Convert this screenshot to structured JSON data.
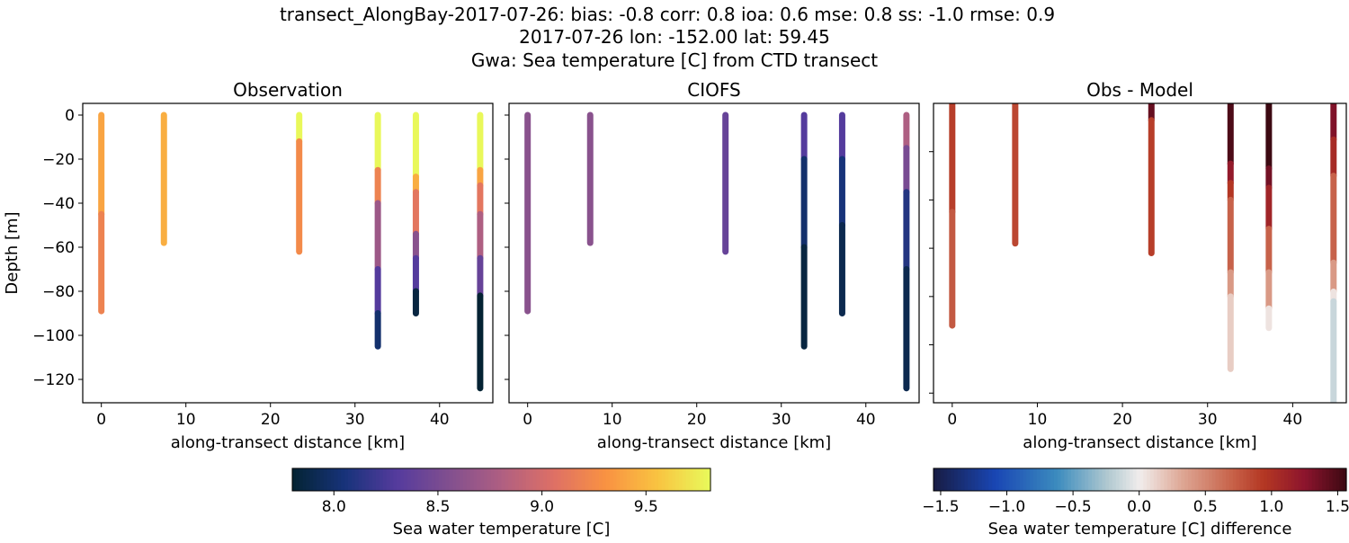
{
  "title_lines": [
    "transect_AlongBay-2017-07-26: bias: -0.8  corr: 0.8  ioa: 0.6  mse: 0.8  ss: -1.0  rmse: 0.9",
    "2017-07-26 lon: -152.00 lat: 59.45",
    "Gwa: Sea temperature [C] from CTD transect"
  ],
  "chart_data": [
    {
      "type": "scatter",
      "title": "Observation",
      "xlabel": "along-transect distance [km]",
      "ylabel": "Depth [m]",
      "xlim": [
        -2.2,
        46.3
      ],
      "ylim": [
        -130.6,
        5.3
      ],
      "xticks": [
        0,
        10,
        20,
        30,
        40
      ],
      "yticks": [
        0,
        -20,
        -40,
        -60,
        -80,
        -100,
        -120
      ],
      "colormap": "thermal",
      "profiles": [
        {
          "x": 0,
          "segments": [
            [
              0,
              -45,
              9.4
            ],
            [
              -45,
              -89,
              9.2
            ]
          ]
        },
        {
          "x": 7.4,
          "segments": [
            [
              0,
              -58,
              9.45
            ]
          ]
        },
        {
          "x": 23.4,
          "segments": [
            [
              0,
              -12,
              9.8
            ],
            [
              -12,
              -62,
              9.25
            ]
          ]
        },
        {
          "x": 32.7,
          "segments": [
            [
              0,
              -25,
              9.8
            ],
            [
              -25,
              -40,
              9.2
            ],
            [
              -40,
              -70,
              8.7
            ],
            [
              -70,
              -90,
              8.3
            ],
            [
              -90,
              -105,
              8.0
            ]
          ]
        },
        {
          "x": 37.2,
          "segments": [
            [
              0,
              -28,
              9.8
            ],
            [
              -28,
              -35,
              9.45
            ],
            [
              -35,
              -54,
              9.1
            ],
            [
              -54,
              -65,
              8.6
            ],
            [
              -65,
              -80,
              8.3
            ],
            [
              -80,
              -90,
              7.85
            ]
          ]
        },
        {
          "x": 44.8,
          "segments": [
            [
              0,
              -25,
              9.8
            ],
            [
              -25,
              -32,
              9.4
            ],
            [
              -32,
              -45,
              9.1
            ],
            [
              -45,
              -65,
              8.8
            ],
            [
              -65,
              -82,
              8.4
            ],
            [
              -82,
              -124,
              7.8
            ]
          ]
        }
      ]
    },
    {
      "type": "scatter",
      "title": "CIOFS",
      "xlabel": "along-transect distance [km]",
      "xlim": [
        -2.2,
        46.3
      ],
      "ylim": [
        -130.6,
        5.3
      ],
      "xticks": [
        0,
        10,
        20,
        30,
        40
      ],
      "yticks": [
        0,
        -20,
        -40,
        -60,
        -80,
        -100,
        -120
      ],
      "colormap": "thermal",
      "profiles": [
        {
          "x": 0,
          "segments": [
            [
              0,
              -89,
              8.6
            ]
          ]
        },
        {
          "x": 7.4,
          "segments": [
            [
              0,
              -58,
              8.6
            ]
          ]
        },
        {
          "x": 23.4,
          "segments": [
            [
              0,
              -62,
              8.4
            ]
          ]
        },
        {
          "x": 32.7,
          "segments": [
            [
              0,
              -20,
              8.3
            ],
            [
              -20,
              -60,
              8.0
            ],
            [
              -60,
              -105,
              7.85
            ]
          ]
        },
        {
          "x": 37.2,
          "segments": [
            [
              0,
              -20,
              8.3
            ],
            [
              -20,
              -50,
              8.05
            ],
            [
              -50,
              -90,
              7.9
            ]
          ]
        },
        {
          "x": 44.8,
          "segments": [
            [
              0,
              -15,
              8.8
            ],
            [
              -15,
              -35,
              8.5
            ],
            [
              -35,
              -70,
              8.1
            ],
            [
              -70,
              -124,
              7.9
            ]
          ]
        }
      ]
    },
    {
      "type": "scatter",
      "title": "Obs - Model",
      "xlabel": "along-transect distance [km]",
      "xlim": [
        -2.2,
        46.3
      ],
      "ylim": [
        -124,
        0
      ],
      "xticks": [
        0,
        10,
        20,
        30,
        40
      ],
      "yticks": [
        -20,
        -40,
        -60,
        -80,
        -100,
        -120
      ],
      "colormap": "balance",
      "profiles": [
        {
          "x": 0,
          "segments": [
            [
              0,
              -45,
              0.9
            ],
            [
              -45,
              -92,
              0.75
            ]
          ]
        },
        {
          "x": 7.4,
          "segments": [
            [
              0,
              -58,
              0.85
            ]
          ]
        },
        {
          "x": 23.4,
          "segments": [
            [
              0,
              -7,
              1.4
            ],
            [
              -7,
              -62,
              0.9
            ]
          ]
        },
        {
          "x": 32.7,
          "segments": [
            [
              0,
              -25,
              1.5
            ],
            [
              -25,
              -33,
              1.2
            ],
            [
              -33,
              -40,
              0.95
            ],
            [
              -40,
              -70,
              0.7
            ],
            [
              -70,
              -80,
              0.4
            ],
            [
              -80,
              -110,
              0.15
            ]
          ]
        },
        {
          "x": 37.2,
          "segments": [
            [
              0,
              -27,
              1.6
            ],
            [
              -27,
              -35,
              1.35
            ],
            [
              -35,
              -52,
              1.1
            ],
            [
              -52,
              -70,
              0.7
            ],
            [
              -70,
              -85,
              0.4
            ],
            [
              -85,
              -93,
              0.05
            ]
          ]
        },
        {
          "x": 44.8,
          "segments": [
            [
              0,
              -15,
              1.3
            ],
            [
              -15,
              -30,
              1.05
            ],
            [
              -30,
              -66,
              0.7
            ],
            [
              -66,
              -78,
              0.4
            ],
            [
              -78,
              -82,
              0.05
            ],
            [
              -82,
              -124,
              -0.15
            ]
          ]
        }
      ]
    }
  ],
  "colorbars": [
    {
      "label": "Sea water temperature [C]",
      "colormap": "thermal",
      "range": [
        7.8,
        9.81
      ],
      "ticks": [
        "8.0",
        "8.5",
        "9.0",
        "9.5"
      ]
    },
    {
      "label": "Sea water temperature [C] difference",
      "colormap": "balance",
      "range": [
        -1.554,
        1.565
      ],
      "ticks": [
        "−1.5",
        "−1.0",
        "−0.5",
        "0.0",
        "0.5",
        "1.0",
        "1.5"
      ]
    }
  ]
}
